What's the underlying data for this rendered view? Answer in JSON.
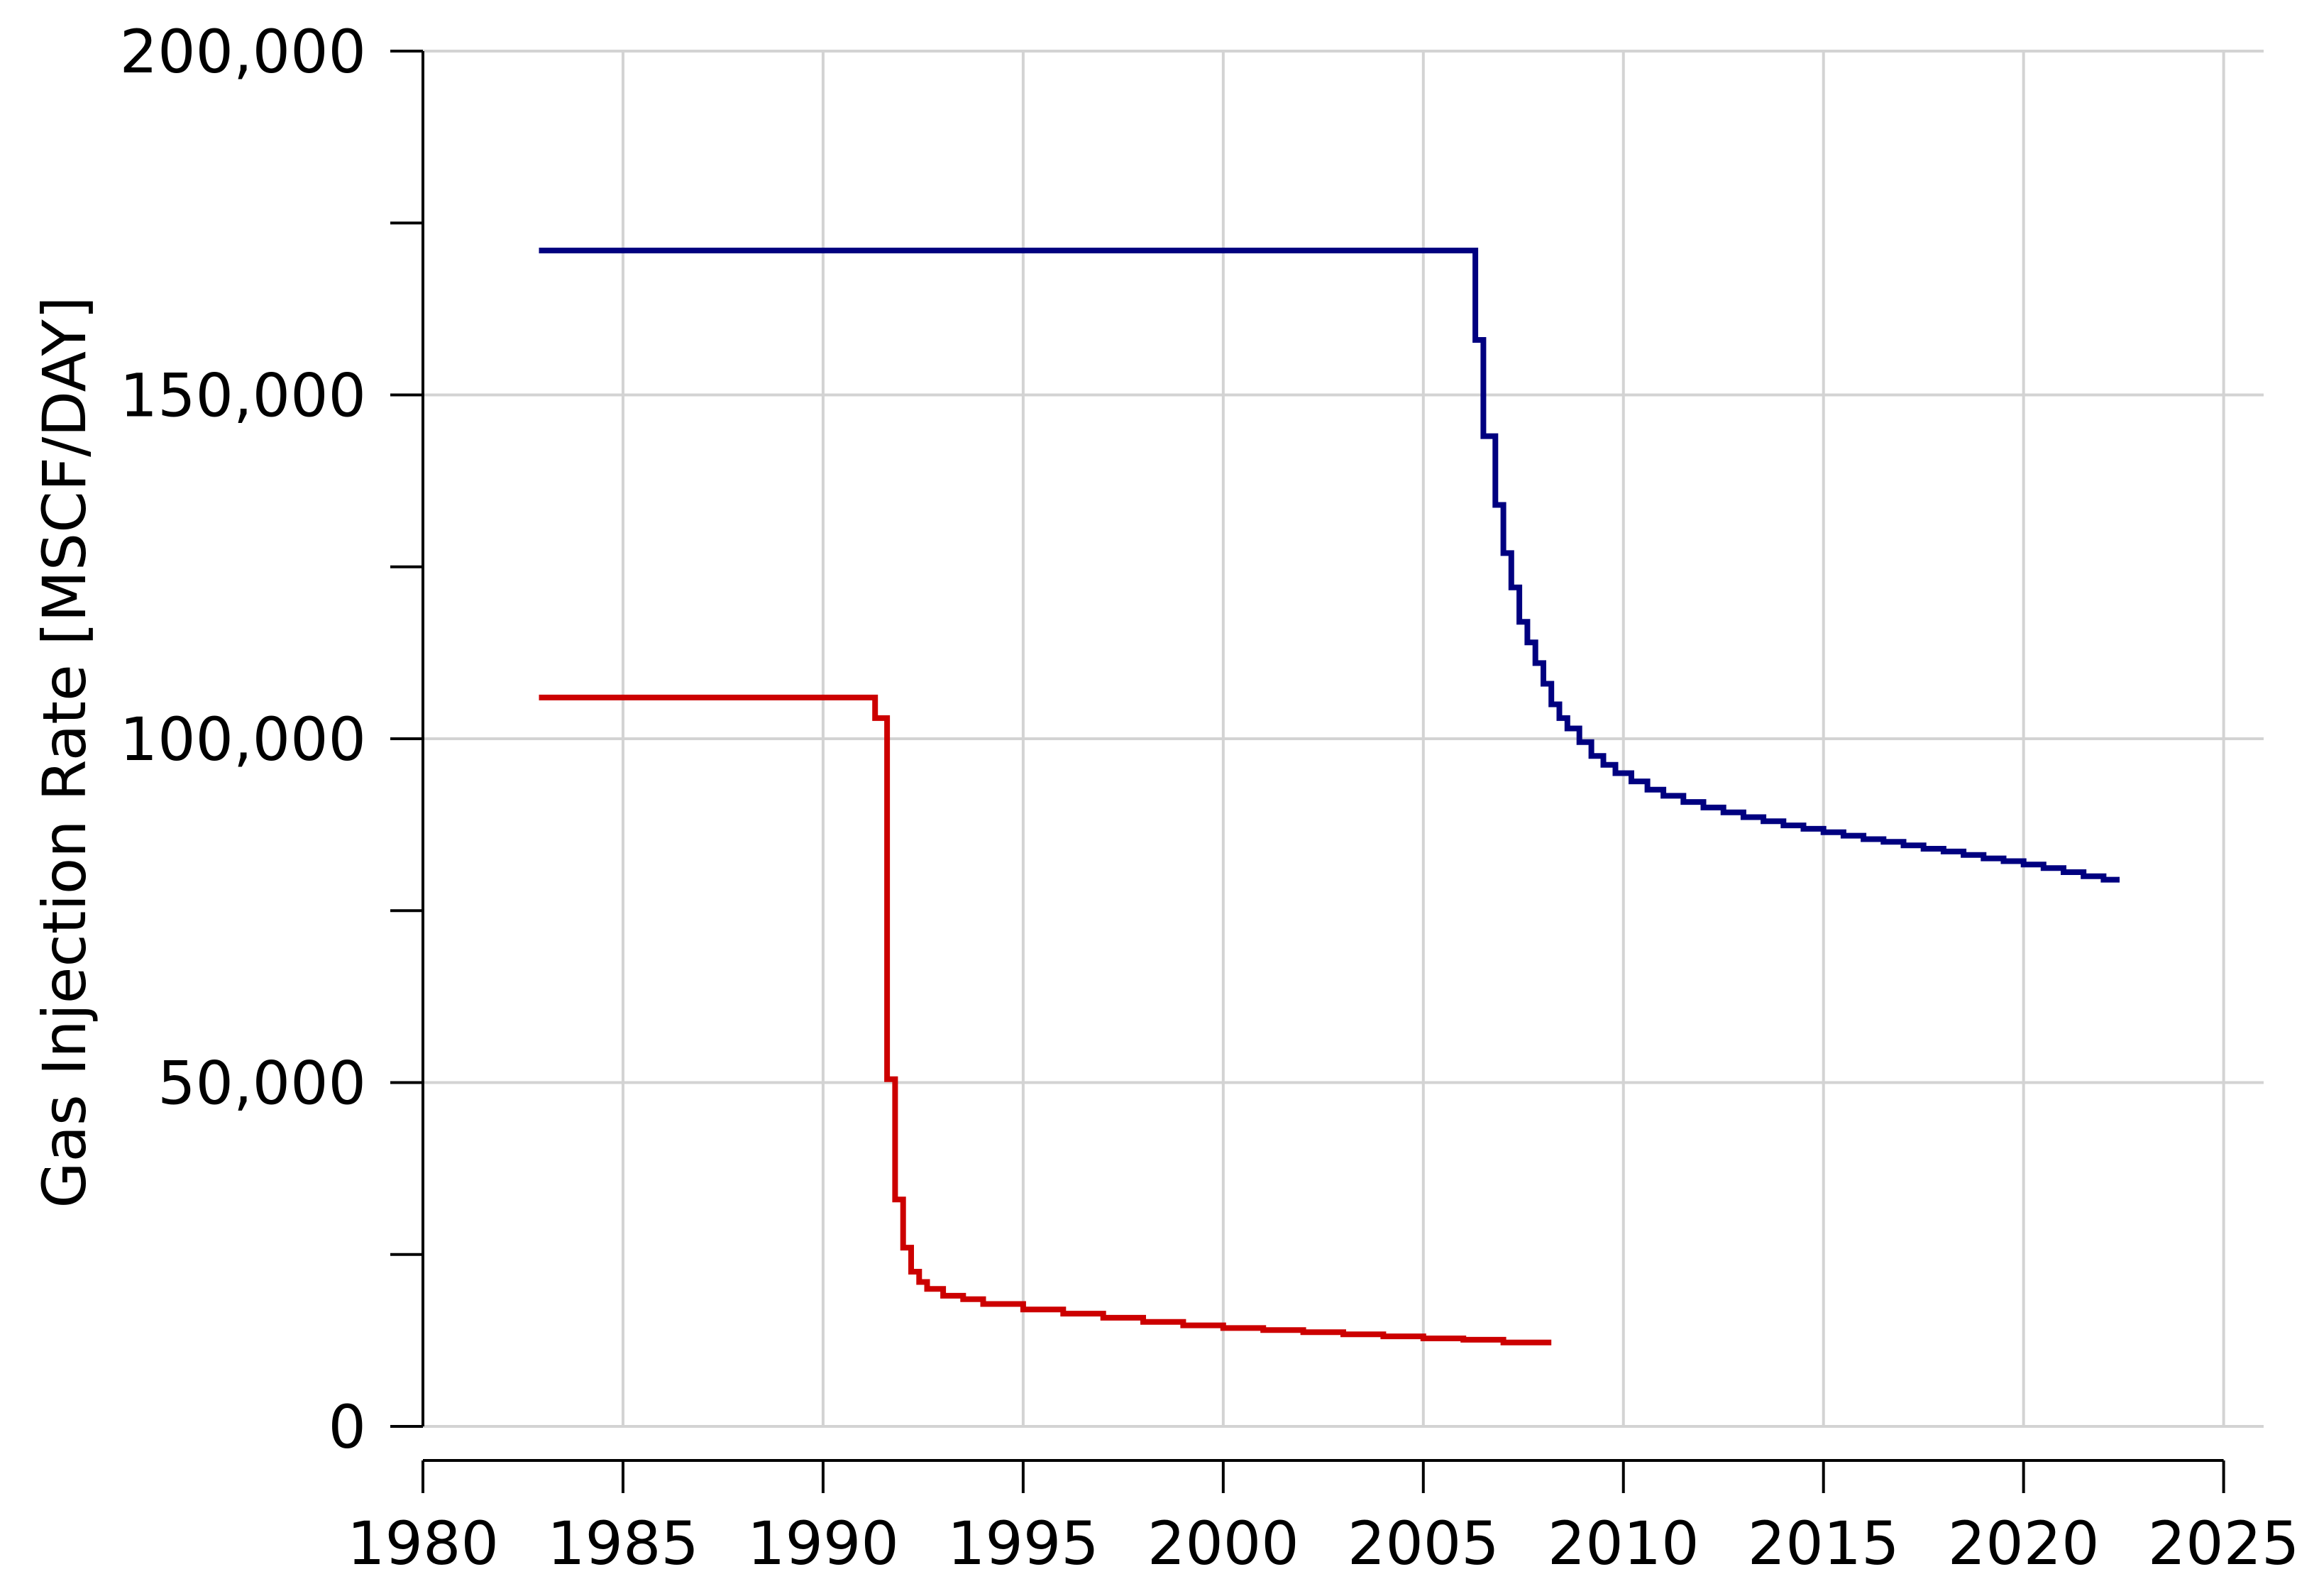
{
  "chart_data": {
    "type": "line",
    "ylabel": "Gas Injection Rate [MSCF/DAY]",
    "xlim": [
      1980,
      2026
    ],
    "ylim": [
      0,
      200000
    ],
    "x_ticks": [
      1980,
      1985,
      1990,
      1995,
      2000,
      2005,
      2010,
      2015,
      2020,
      2025
    ],
    "x_tick_labels": [
      "1980",
      "1985",
      "1990",
      "1995",
      "2000",
      "2005",
      "2010",
      "2015",
      "2020",
      "2025"
    ],
    "y_ticks": [
      0,
      50000,
      100000,
      150000,
      200000
    ],
    "y_tick_labels": [
      "0",
      "50,000",
      "100,000",
      "150,000",
      "200,000"
    ],
    "grid": true,
    "legend": "none",
    "step_style": "post",
    "series": [
      {
        "color": "#000080",
        "x": [
          1982.9,
          2006.3,
          2006.5,
          2006.8,
          2007.0,
          2007.2,
          2007.4,
          2007.6,
          2007.8,
          2008.0,
          2008.2,
          2008.4,
          2008.6,
          2008.9,
          2009.2,
          2009.5,
          2009.8,
          2010.2,
          2010.6,
          2011.0,
          2011.5,
          2012.0,
          2012.5,
          2013.0,
          2013.5,
          2014.0,
          2014.5,
          2015.0,
          2015.5,
          2016.0,
          2016.5,
          2017.0,
          2017.5,
          2018.0,
          2018.5,
          2019.0,
          2019.5,
          2020.0,
          2020.5,
          2021.0,
          2021.5,
          2022.0,
          2022.4
        ],
        "y": [
          171000,
          158000,
          144000,
          134000,
          127000,
          122000,
          117000,
          114000,
          111000,
          108000,
          105000,
          103000,
          101500,
          99500,
          97500,
          96200,
          95000,
          93800,
          92600,
          91700,
          90800,
          90000,
          89300,
          88600,
          88000,
          87400,
          86900,
          86400,
          85900,
          85400,
          85000,
          84500,
          84000,
          83600,
          83100,
          82600,
          82200,
          81700,
          81200,
          80600,
          80000,
          79500,
          79500
        ]
      },
      {
        "color": "#cc0000",
        "x": [
          1982.9,
          1991.3,
          1991.6,
          1991.8,
          1992.0,
          1992.2,
          1992.4,
          1992.6,
          1993.0,
          1993.5,
          1994.0,
          1995.0,
          1996.0,
          1997.0,
          1998.0,
          1999.0,
          2000.0,
          2001.0,
          2002.0,
          2003.0,
          2004.0,
          2005.0,
          2006.0,
          2007.0,
          2008.2
        ],
        "y": [
          106000,
          103000,
          50500,
          33000,
          26000,
          22500,
          21000,
          20000,
          19000,
          18500,
          17800,
          17000,
          16400,
          15800,
          15200,
          14700,
          14300,
          14000,
          13700,
          13400,
          13100,
          12800,
          12600,
          12200,
          12200
        ]
      }
    ]
  }
}
